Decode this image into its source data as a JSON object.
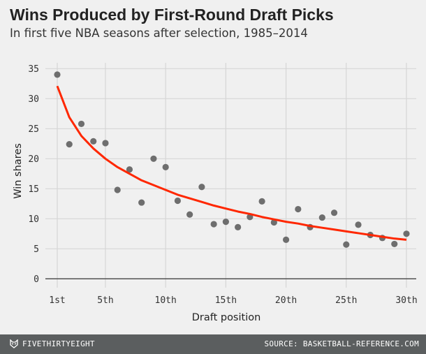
{
  "header": {
    "title": "Wins Produced by First-Round Draft Picks",
    "subtitle": "In first five NBA seasons after selection, 1985–2014"
  },
  "footer": {
    "brand": "FIVETHIRTYEIGHT",
    "brand_icon": "fox-icon",
    "source": "SOURCE: BASKETBALL-REFERENCE.COM"
  },
  "chart_data": {
    "type": "scatter",
    "xlabel": "Draft position",
    "ylabel": "Win shares",
    "xlim": [
      1,
      30
    ],
    "ylim": [
      0,
      35
    ],
    "grid": true,
    "x_ticks": [
      1,
      5,
      10,
      15,
      20,
      25,
      30
    ],
    "x_tick_labels": [
      "1st",
      "5th",
      "10th",
      "15th",
      "20th",
      "25th",
      "30th"
    ],
    "y_ticks": [
      0,
      5,
      10,
      15,
      20,
      25,
      30,
      35
    ],
    "y_tick_labels": [
      "0",
      "5",
      "10",
      "15",
      "20",
      "25",
      "30",
      "35"
    ],
    "point_color": "#6e6e6e",
    "trend_color": "#ff2700",
    "points": {
      "x": [
        1,
        2,
        3,
        4,
        5,
        6,
        7,
        8,
        9,
        10,
        11,
        12,
        13,
        14,
        15,
        16,
        17,
        18,
        19,
        20,
        21,
        22,
        23,
        24,
        25,
        26,
        27,
        28,
        29,
        30
      ],
      "y": [
        34.0,
        22.4,
        25.8,
        22.9,
        22.6,
        14.8,
        18.2,
        12.7,
        20.0,
        18.6,
        13.0,
        10.7,
        15.3,
        9.1,
        9.5,
        8.6,
        10.3,
        12.9,
        9.4,
        6.5,
        11.6,
        8.6,
        10.2,
        11.0,
        5.7,
        9.0,
        7.3,
        6.8,
        5.8,
        7.5
      ]
    },
    "trend": {
      "x": [
        1,
        2,
        3,
        4,
        5,
        6,
        7,
        8,
        9,
        10,
        11,
        12,
        13,
        14,
        15,
        16,
        17,
        18,
        19,
        20,
        21,
        22,
        23,
        24,
        25,
        26,
        27,
        28,
        29,
        30
      ],
      "y": [
        32.1,
        26.9,
        23.8,
        21.7,
        20.0,
        18.6,
        17.5,
        16.4,
        15.6,
        14.8,
        14.0,
        13.4,
        12.8,
        12.2,
        11.7,
        11.2,
        10.8,
        10.3,
        9.9,
        9.5,
        9.2,
        8.8,
        8.5,
        8.2,
        7.9,
        7.6,
        7.3,
        7.0,
        6.7,
        6.5
      ]
    }
  }
}
